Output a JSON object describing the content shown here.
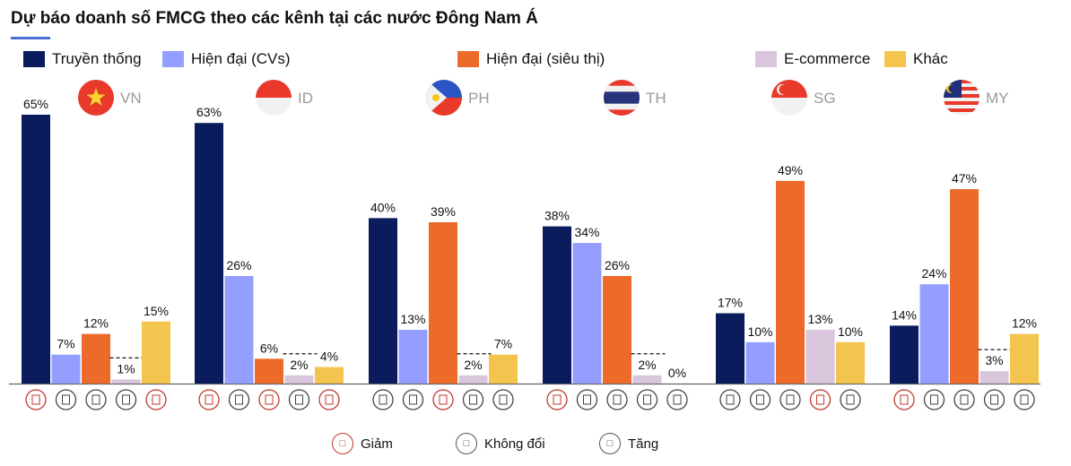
{
  "title": "Dự báo doanh số FMCG theo các kênh tại các nước Đông Nam Á",
  "legend": [
    {
      "label": "Truyền thống",
      "color": "#0b1c5c"
    },
    {
      "label": "Hiện đại (CVs)",
      "color": "#939eff"
    },
    {
      "label": "Hiện đại (siêu thị)",
      "color": "#ec6a2a"
    },
    {
      "label": "E-commerce",
      "color": "#d9c6dd"
    },
    {
      "label": "Khác",
      "color": "#f4c54e"
    }
  ],
  "trend_legend": [
    {
      "key": "down",
      "label": "Giảm",
      "icon": "□"
    },
    {
      "key": "flat",
      "label": "Không đổi",
      "icon": "□"
    },
    {
      "key": "up",
      "label": "Tăng",
      "icon": "□"
    }
  ],
  "chart_data": {
    "type": "bar",
    "title": "Dự báo doanh số FMCG theo các kênh tại các nước Đông Nam Á",
    "unit": "%",
    "ylim": [
      0,
      65
    ],
    "grid": false,
    "legend_position": "top",
    "series_names": [
      "Truyền thống",
      "Hiện đại (CVs)",
      "Hiện đại (siêu thị)",
      "E-commerce",
      "Khác"
    ],
    "groups": [
      {
        "country": "VN",
        "flag": "vn",
        "values": [
          65,
          7,
          12,
          1,
          15
        ],
        "labels": [
          "65%",
          "7%",
          "12%",
          "1%",
          "15%"
        ],
        "trend": [
          "down",
          "flat",
          "flat",
          "flat",
          "down"
        ]
      },
      {
        "country": "ID",
        "flag": "id",
        "values": [
          63,
          26,
          6,
          2,
          4
        ],
        "labels": [
          "63%",
          "26%",
          "6%",
          "2%",
          "4%"
        ],
        "trend": [
          "down",
          "flat",
          "down",
          "flat",
          "down"
        ]
      },
      {
        "country": "PH",
        "flag": "ph",
        "values": [
          40,
          13,
          39,
          2,
          7
        ],
        "labels": [
          "40%",
          "13%",
          "39%",
          "2%",
          "7%"
        ],
        "trend": [
          "flat",
          "flat",
          "down",
          "flat",
          "flat"
        ]
      },
      {
        "country": "TH",
        "flag": "th",
        "values": [
          38,
          34,
          26,
          2,
          0
        ],
        "labels": [
          "38%",
          "34%",
          "26%",
          "2%",
          "0%"
        ],
        "trend": [
          "down",
          "flat",
          "flat",
          "flat",
          "flat"
        ]
      },
      {
        "country": "SG",
        "flag": "sg",
        "values": [
          17,
          10,
          49,
          13,
          10
        ],
        "labels": [
          "17%",
          "10%",
          "49%",
          "13%",
          "10%"
        ],
        "trend": [
          "flat",
          "flat",
          "flat",
          "down",
          "flat"
        ]
      },
      {
        "country": "MY",
        "flag": "my",
        "values": [
          14,
          24,
          47,
          3,
          12
        ],
        "labels": [
          "14%",
          "24%",
          "47%",
          "3%",
          "12%"
        ],
        "trend": [
          "down",
          "flat",
          "flat",
          "flat",
          "flat"
        ]
      }
    ]
  }
}
